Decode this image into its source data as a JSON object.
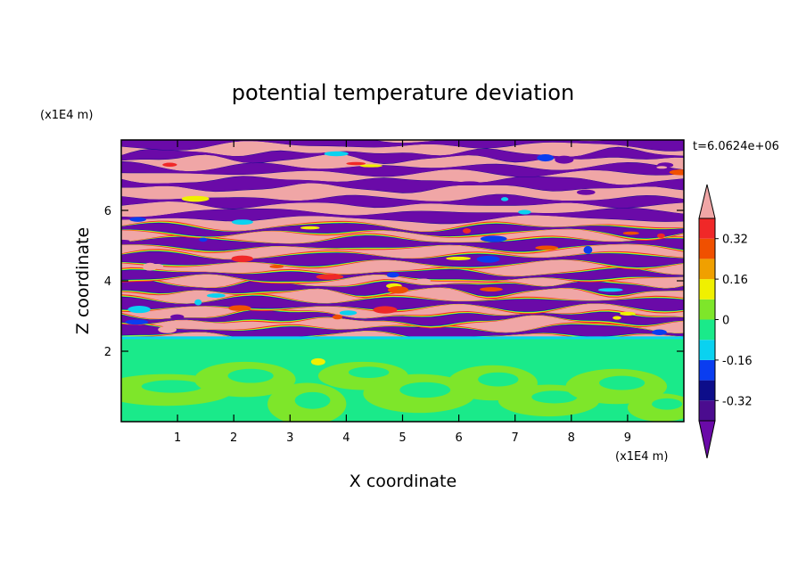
{
  "chart_data": {
    "type": "heatmap",
    "title": "potential temperature deviation",
    "xlabel": "X coordinate",
    "ylabel": "Z coordinate",
    "x_unit": "(x1E4 m)",
    "y_unit": "(x1E4 m)",
    "time_label": "t=6.0624e+06",
    "xlim": [
      0,
      10
    ],
    "ylim": [
      0,
      8
    ],
    "x_ticks": [
      1,
      2,
      3,
      4,
      5,
      6,
      7,
      8,
      9
    ],
    "y_ticks": [
      2,
      4,
      6
    ],
    "x_tick_labels": [
      "1",
      "2",
      "3",
      "4",
      "5",
      "6",
      "7",
      "8",
      "9"
    ],
    "y_tick_labels": [
      "2",
      "4",
      "6"
    ],
    "colorbar": {
      "levels": [
        -0.4,
        -0.32,
        -0.24,
        -0.16,
        -0.08,
        0,
        0.08,
        0.16,
        0.24,
        0.32,
        0.4
      ],
      "colors": [
        "#4b0c8f",
        "#0d0d8a",
        "#0a3df0",
        "#0ad2f0",
        "#1aea8a",
        "#7ee62a",
        "#f0f000",
        "#f0a000",
        "#f05000",
        "#f02828",
        "#f0a6a6"
      ],
      "under_color": "#6a0aa8",
      "over_color": "#f0a6a6",
      "tick_labels": [
        "0.32",
        "0.16",
        "0",
        "-0.16",
        "-0.32"
      ]
    },
    "regions": [
      {
        "z_range": [
          0,
          2.0
        ],
        "description_value": "mostly between -0.08 and 0.08 (green)"
      },
      {
        "z_range": [
          2.0,
          2.4
        ],
        "description_value": "near -0.08 to 0 (cyan-green band)"
      },
      {
        "z_range": [
          2.4,
          8.0
        ],
        "description_value": "alternating layers of about -0.4 and +0.4"
      }
    ]
  }
}
